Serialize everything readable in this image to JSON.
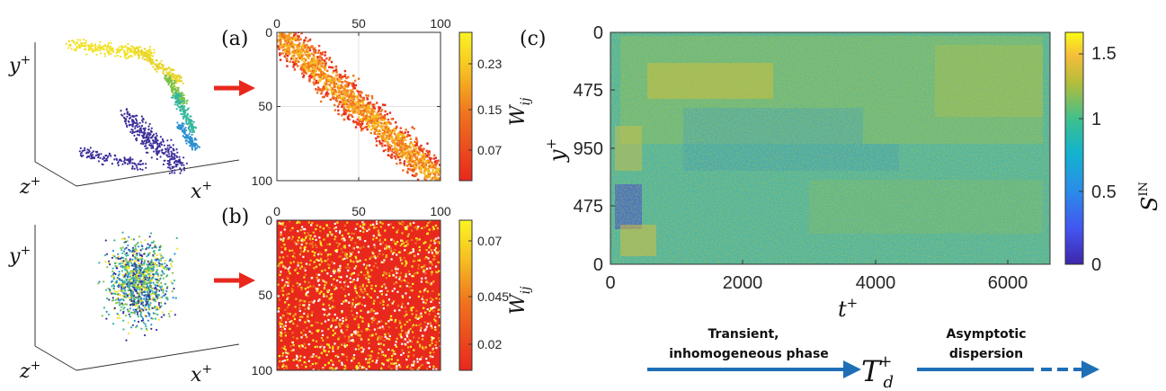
{
  "chart_data": [
    {
      "id": "3d-clustered",
      "type": "scatter",
      "axis_labels": {
        "y": "y",
        "z": "z",
        "x": "x",
        "superscript": "+"
      },
      "description_colors": [
        "#3b2f9a",
        "#2a8fd0",
        "#35b89a",
        "#f2e125"
      ]
    },
    {
      "id": "a",
      "type": "heatmap",
      "panel_label": "(a)",
      "xticks": [
        "0",
        "50",
        "100"
      ],
      "yticks": [
        "0",
        "50",
        "100"
      ],
      "xlim": [
        0,
        100
      ],
      "ylim": [
        100,
        0
      ],
      "colorbar_ticks": [
        "0.23",
        "0.15",
        "0.07"
      ],
      "colorbar_label": "W",
      "colorbar_label_sub": "ij",
      "structure": "diagonal band"
    },
    {
      "id": "3d-uniform",
      "type": "scatter",
      "axis_labels": {
        "y": "y",
        "z": "z",
        "x": "x",
        "superscript": "+"
      }
    },
    {
      "id": "b",
      "type": "heatmap",
      "panel_label": "(b)",
      "xticks": [
        "0",
        "50",
        "100"
      ],
      "yticks": [
        "0",
        "50",
        "100"
      ],
      "xlim": [
        0,
        100
      ],
      "ylim": [
        100,
        0
      ],
      "colorbar_ticks": [
        "0.07",
        "0.045",
        "0.02"
      ],
      "colorbar_label": "W",
      "colorbar_label_sub": "ij",
      "structure": "uniform random"
    },
    {
      "id": "c",
      "type": "heatmap",
      "panel_label": "(c)",
      "xlabel": "t",
      "xlabel_sup": "+",
      "ylabel": "y",
      "ylabel_sup": "+",
      "xticks": [
        "0",
        "2000",
        "4000",
        "6000"
      ],
      "xlim": [
        0,
        6600
      ],
      "yticks": [
        "0",
        "475",
        "950",
        "475",
        "0"
      ],
      "colorbar_ticks": [
        "1.5",
        "1",
        "0.5",
        "0"
      ],
      "colorbar_range": [
        0,
        1.6
      ],
      "colorbar_label": "S",
      "colorbar_label_sup": "IN"
    }
  ],
  "timeline": {
    "phase1": [
      "Transient,",
      "inhomogeneous phase"
    ],
    "marker": "T",
    "marker_sub": "d",
    "marker_sup": "+",
    "phase2": [
      "Asymptotic",
      "dispersion"
    ]
  }
}
